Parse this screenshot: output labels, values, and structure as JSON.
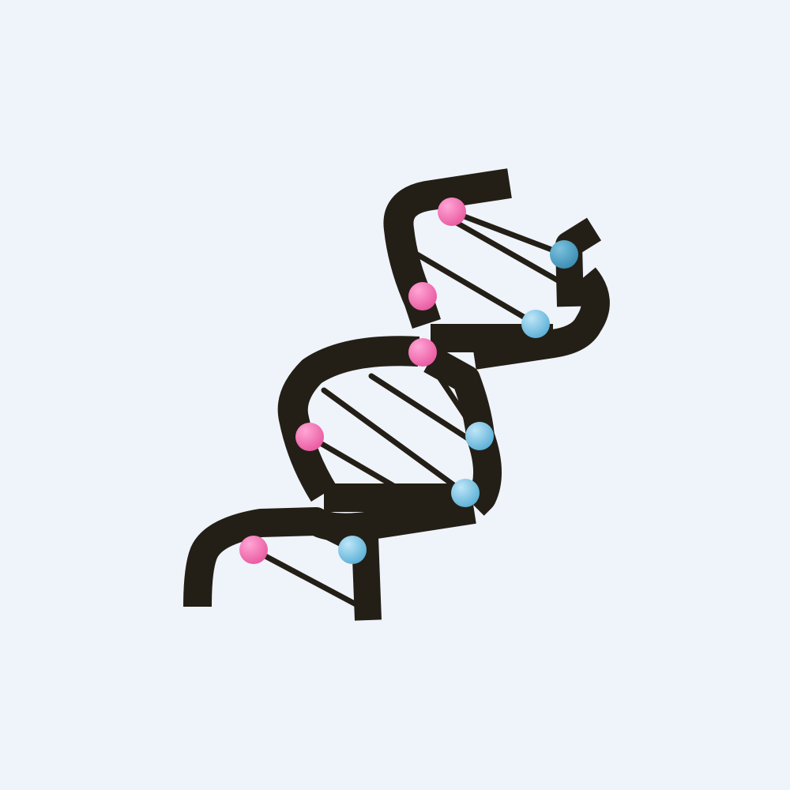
{
  "illustration": {
    "subject": "dna-double-helix-icon",
    "colors": {
      "background": "#EFF3FA",
      "strand": "#231F16",
      "rung": "#231F16",
      "pink_light": "#FFA6D6",
      "pink_dark": "#E8589F",
      "blue_light": "#BFE6F8",
      "blue_dark": "#5AAFD6",
      "teal_light": "#7CC2DE",
      "teal_dark": "#3A8CB2"
    }
  }
}
